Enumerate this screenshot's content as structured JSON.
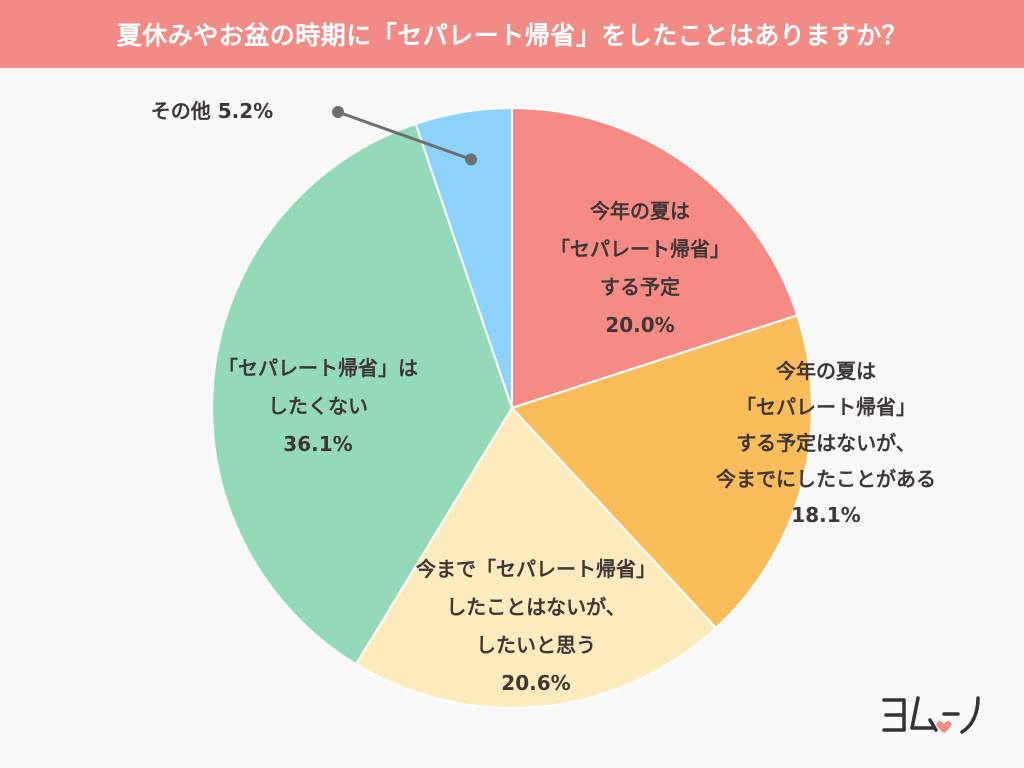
{
  "title": "夏休みやお盆の時期に「セパレート帰省」をしたことはありますか？",
  "chart_data": {
    "type": "pie",
    "start_angle_deg": 0,
    "direction": "clockwise",
    "slices": [
      {
        "label_lines": [
          "今年の夏は",
          "「セパレート帰省」",
          "する予定",
          "20.0%"
        ],
        "value": 20.0,
        "color": "#f68b85"
      },
      {
        "label_lines": [
          "今年の夏は",
          "「セパレート帰省」",
          "する予定はないが、",
          "今までにしたことがある",
          "18.1%"
        ],
        "value": 18.1,
        "color": "#fbbc5a"
      },
      {
        "label_lines": [
          "今まで「セパレート帰省」",
          "したことはないが、",
          "したいと思う",
          "20.6%"
        ],
        "value": 20.6,
        "color": "#fdebbd"
      },
      {
        "label_lines": [
          "「セパレート帰省」は",
          "したくない",
          "36.1%"
        ],
        "value": 36.1,
        "color": "#94dab9"
      },
      {
        "label_lines": [
          "その他 5.2%"
        ],
        "value": 5.2,
        "color": "#8dd2fb"
      }
    ]
  },
  "logo": {
    "text": "ヨムーノ"
  }
}
